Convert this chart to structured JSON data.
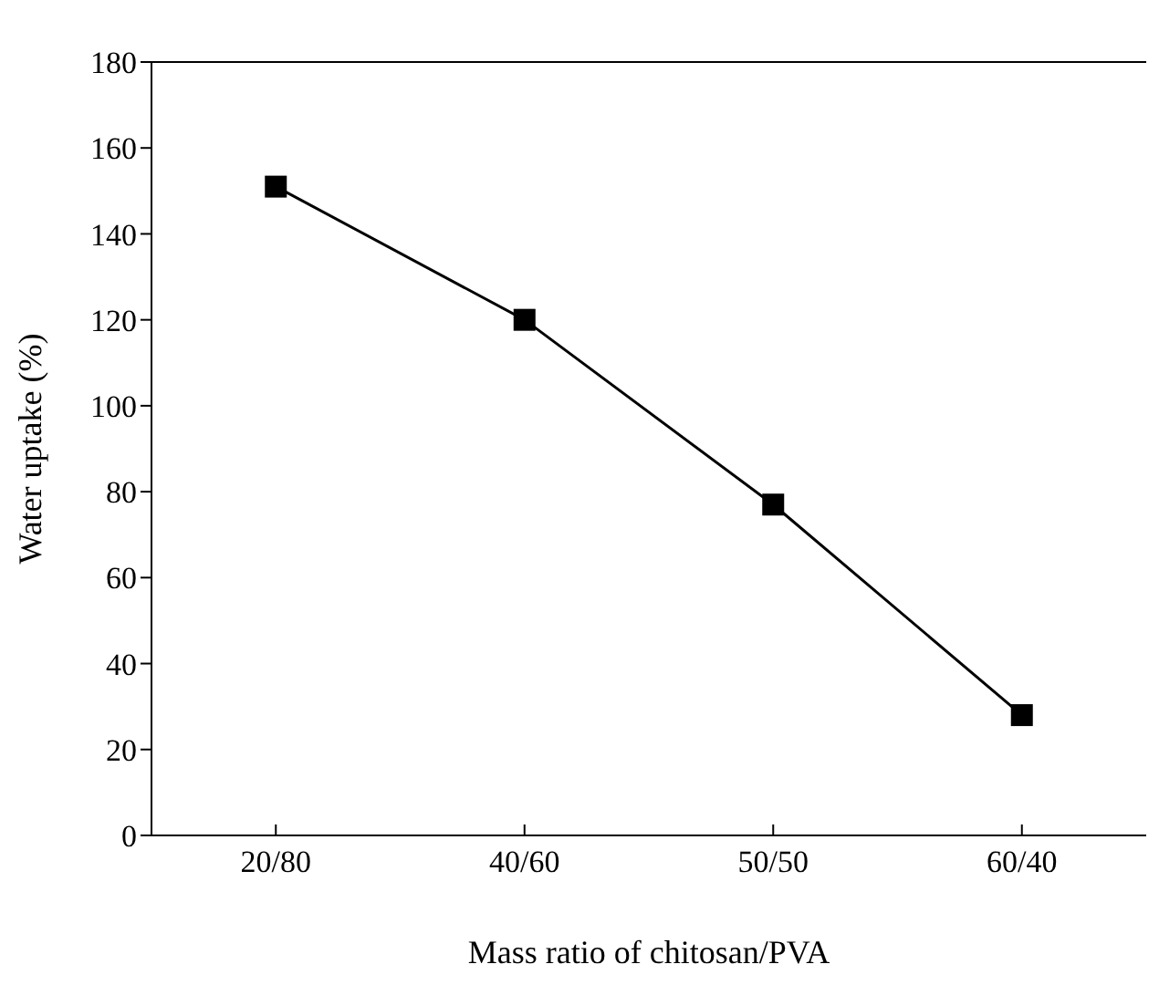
{
  "chart_data": {
    "type": "line",
    "xlabel": "Mass ratio of chitosan/PVA",
    "ylabel": "Water uptake (%)",
    "categories": [
      "20/80",
      "40/60",
      "50/50",
      "60/40"
    ],
    "series": [
      {
        "color": "#000000",
        "values": [
          151,
          120,
          77,
          28
        ]
      }
    ],
    "ylim": [
      0,
      180
    ],
    "yticks": [
      0,
      20,
      40,
      60,
      80,
      100,
      120,
      140,
      160,
      180
    ],
    "marker": "square",
    "line_style": "solid",
    "grid": false,
    "legend": false
  }
}
